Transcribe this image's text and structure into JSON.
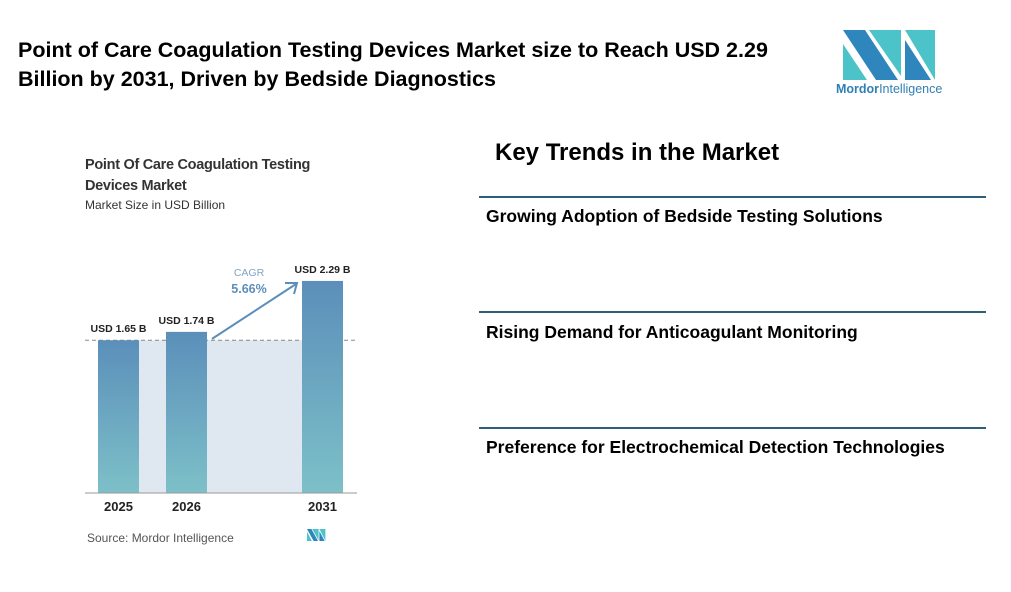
{
  "header": {
    "title": "Point of Care Coagulation Testing Devices Market size to Reach USD 2.29 Billion by 2031, Driven by Bedside Diagnostics",
    "logo": {
      "brand_bold": "Mordor",
      "brand_light": "Intelligence"
    }
  },
  "chart_data": {
    "type": "bar",
    "title": "Point Of Care Coagulation Testing Devices Market",
    "subtitle": "Market Size in USD Billion",
    "categories": [
      "2025",
      "2026",
      "2031"
    ],
    "values": [
      1.65,
      1.74,
      2.29
    ],
    "data_labels": [
      "USD 1.65 B",
      "USD 1.74 B",
      "USD 2.29 B"
    ],
    "annotation": {
      "label": "CAGR",
      "value": "5.66%"
    },
    "ylim": [
      0,
      2.5
    ],
    "source": "Source: Mordor Intelligence",
    "colors": {
      "bar_top": "#5b8fba",
      "bar_bottom": "#7dc0c8",
      "shade": "#dfe8f1",
      "cagr": "#5b8fba"
    }
  },
  "trends": {
    "title": "Key Trends in the Market",
    "items": [
      "Growing Adoption of Bedside Testing Solutions",
      "Rising Demand for Anticoagulant Monitoring",
      "Preference for Electrochemical Detection Technologies"
    ]
  }
}
